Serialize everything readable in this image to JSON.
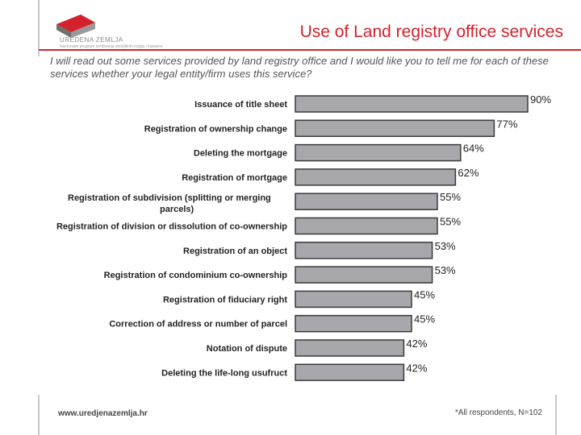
{
  "header": {
    "logo_text": "UREDENA ZEMLJA",
    "logo_subtext": "Nacionalni program sređivanja zemljišnih knjiga i katastra",
    "title": "Use of Land registry office services"
  },
  "question": "I will read out some services provided by land registry office and I would like you to tell me for each of these services whether your legal entity/firm uses this service?",
  "footer": {
    "url": "www.uredjenazemlja.hr",
    "note": "*All respondents, N=102"
  },
  "colors": {
    "accent": "#d4222c",
    "bar_fill": "#a8a8ac",
    "bar_stroke": "#3a3a3a"
  },
  "chart_data": {
    "type": "bar",
    "orientation": "horizontal",
    "categories": [
      "Issuance of title sheet",
      "Registration of ownership change",
      "Deleting the mortgage",
      "Registration of mortgage",
      "Registration of subdivision (splitting or merging parcels)",
      "Registration of division or dissolution of co-ownership",
      "Registration of an object",
      "Registration of condominium co-ownership",
      "Registration of fiduciary right",
      "Correction of address or number of parcel",
      "Notation of dispute",
      "Deleting the life-long usufruct"
    ],
    "values": [
      90,
      77,
      64,
      62,
      55,
      55,
      53,
      53,
      45,
      45,
      42,
      42
    ],
    "value_labels": [
      "90%",
      "77%",
      "64%",
      "62%",
      "55%",
      "55%",
      "53%",
      "53%",
      "45%",
      "45%",
      "42%",
      "42%"
    ],
    "xlim": [
      0,
      100
    ],
    "grid": false,
    "legend": "none"
  }
}
